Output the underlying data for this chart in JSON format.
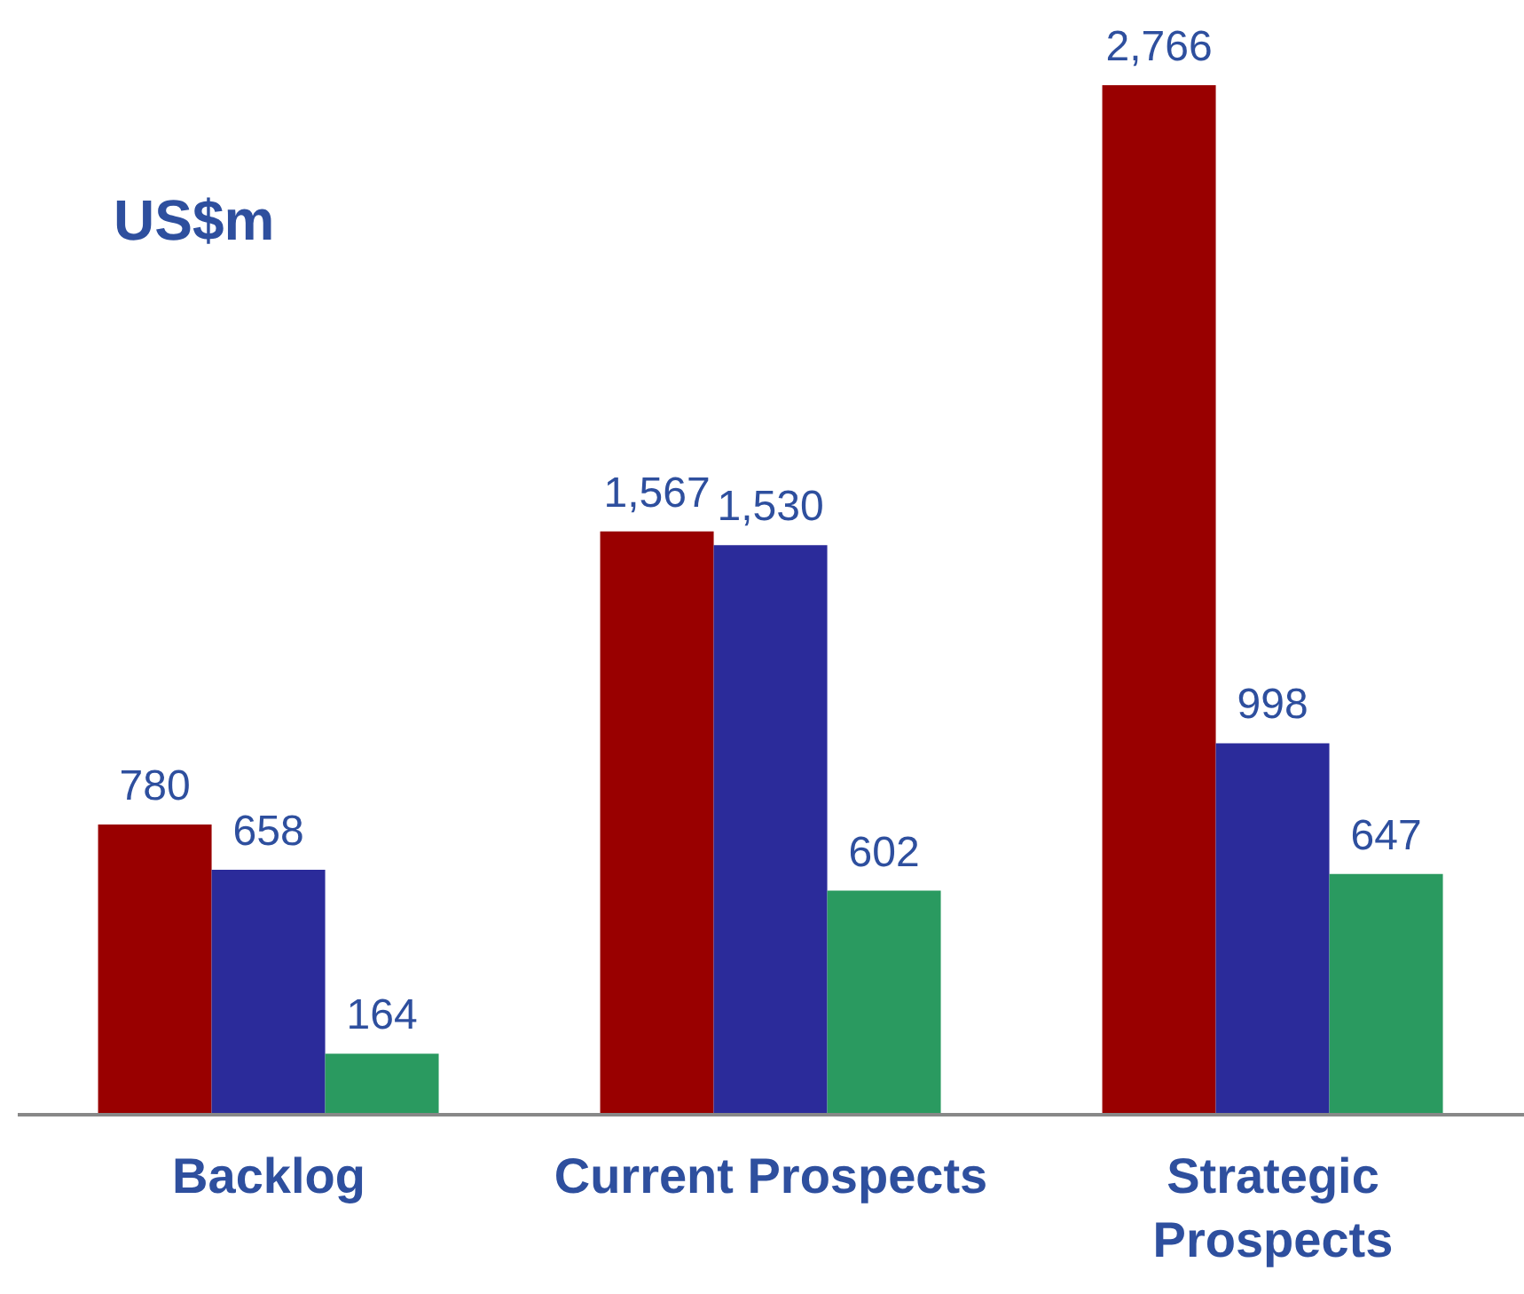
{
  "chart_data": {
    "type": "bar",
    "ylabel": "US$m",
    "categories": [
      "Backlog",
      "Current Prospects",
      "Strategic Prospects"
    ],
    "series": [
      {
        "color": "#990000",
        "values": [
          780,
          1567,
          2766
        ],
        "value_labels": [
          "780",
          "1,567",
          "2,766"
        ]
      },
      {
        "color": "#2b2b9a",
        "values": [
          658,
          1530,
          998
        ],
        "value_labels": [
          "658",
          "1,530",
          "998"
        ]
      },
      {
        "color": "#2a9a60",
        "values": [
          164,
          602,
          647
        ],
        "value_labels": [
          "164",
          "602",
          "647"
        ]
      }
    ],
    "grid": false,
    "legend": false
  }
}
